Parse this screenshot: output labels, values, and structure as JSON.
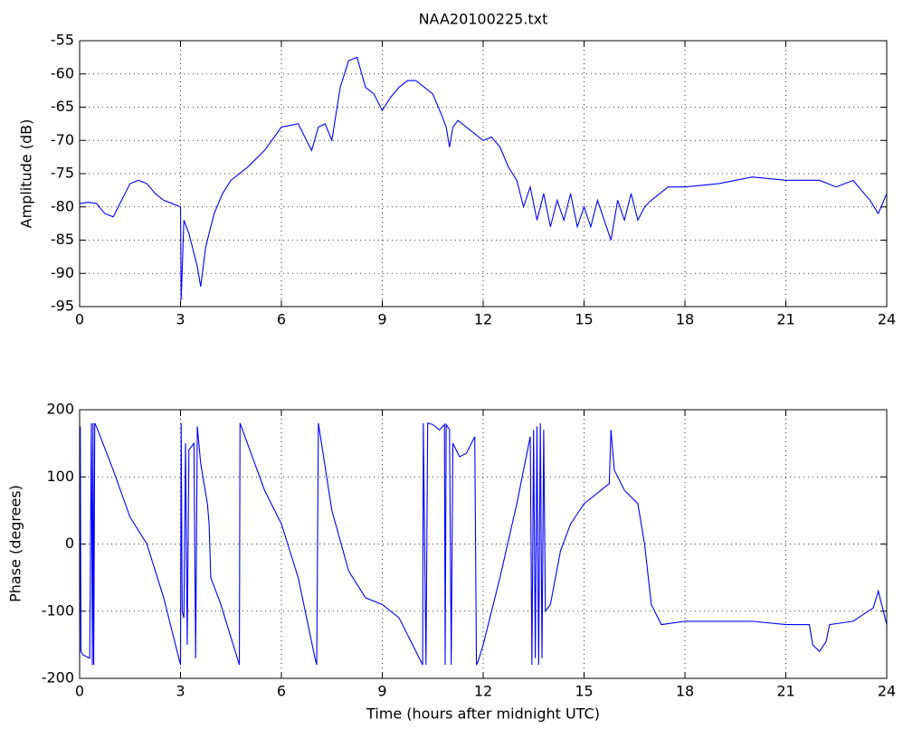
{
  "chart_data": [
    {
      "type": "line",
      "title": "NAA20100225.txt",
      "y_label": "Amplitude (dB)",
      "grid": true,
      "xlim": [
        0,
        24
      ],
      "xticks": [
        0,
        3,
        6,
        9,
        12,
        15,
        18,
        21,
        24
      ],
      "ylim": [
        -95,
        -55
      ],
      "yticks": [
        -55,
        -60,
        -65,
        -70,
        -75,
        -80,
        -85,
        -90,
        -95
      ],
      "series": [
        {
          "name": "Amplitude",
          "color": "#0000ff",
          "x": [
            0,
            0.25,
            0.5,
            0.75,
            1.0,
            1.25,
            1.5,
            1.75,
            2.0,
            2.25,
            2.5,
            2.75,
            3.0,
            3.02,
            3.1,
            3.25,
            3.5,
            3.6,
            3.75,
            4.0,
            4.25,
            4.5,
            5.0,
            5.5,
            6.0,
            6.5,
            6.75,
            6.9,
            7.1,
            7.3,
            7.5,
            7.75,
            8.0,
            8.25,
            8.5,
            8.75,
            9.0,
            9.25,
            9.5,
            9.75,
            10.0,
            10.25,
            10.5,
            10.75,
            10.9,
            11.0,
            11.1,
            11.25,
            11.5,
            11.75,
            12.0,
            12.25,
            12.5,
            12.75,
            13.0,
            13.2,
            13.4,
            13.6,
            13.8,
            14.0,
            14.2,
            14.4,
            14.6,
            14.8,
            15.0,
            15.2,
            15.4,
            15.6,
            15.8,
            16.0,
            16.2,
            16.4,
            16.6,
            16.8,
            17.0,
            17.5,
            18.0,
            19.0,
            20.0,
            21.0,
            22.0,
            22.5,
            23.0,
            23.5,
            23.75,
            24.0
          ],
          "values": [
            -79.5,
            -79.3,
            -79.5,
            -81,
            -81.5,
            -79,
            -76.5,
            -76,
            -76.5,
            -78,
            -79,
            -79.5,
            -80,
            -94,
            -82,
            -84,
            -89,
            -92,
            -86,
            -81,
            -78,
            -76,
            -74,
            -71.5,
            -68,
            -67.5,
            -70,
            -71.5,
            -68,
            -67.5,
            -70,
            -62,
            -58,
            -57.5,
            -62,
            -63,
            -65.5,
            -63.5,
            -62,
            -61,
            -61,
            -62,
            -63,
            -66,
            -68,
            -71,
            -68,
            -67,
            -68,
            -69,
            -70,
            -69.5,
            -71,
            -74,
            -76,
            -80,
            -77,
            -82,
            -78,
            -83,
            -79,
            -82,
            -78,
            -83,
            -80,
            -83,
            -79,
            -82,
            -85,
            -79,
            -82,
            -78,
            -82,
            -80,
            -79,
            -77,
            -77,
            -76.5,
            -75.5,
            -76,
            -76,
            -77,
            -76,
            -79,
            -81,
            -78
          ]
        }
      ]
    },
    {
      "type": "line",
      "x_label": "Time (hours after midnight UTC)",
      "y_label": "Phase (degrees)",
      "grid": true,
      "xlim": [
        0,
        24
      ],
      "xticks": [
        0,
        3,
        6,
        9,
        12,
        15,
        18,
        21,
        24
      ],
      "ylim": [
        -200,
        200
      ],
      "yticks": [
        200,
        100,
        0,
        -100,
        -200
      ],
      "series": [
        {
          "name": "Phase",
          "color": "#0000ff",
          "x": [
            0,
            0.02,
            0.04,
            0.1,
            0.3,
            0.35,
            0.38,
            0.4,
            0.42,
            0.45,
            0.5,
            1,
            1.5,
            2,
            2.5,
            3.0,
            3.02,
            3.05,
            3.1,
            3.15,
            3.2,
            3.25,
            3.4,
            3.45,
            3.5,
            3.6,
            3.8,
            3.85,
            3.9,
            4.2,
            4.75,
            4.77,
            5.5,
            6,
            6.5,
            7.0,
            7.05,
            7.1,
            7.5,
            8,
            8.5,
            9,
            9.5,
            10,
            10.2,
            10.22,
            10.3,
            10.35,
            10.5,
            10.7,
            10.85,
            10.87,
            10.9,
            11.0,
            11.05,
            11.1,
            11.3,
            11.5,
            11.75,
            11.8,
            11.85,
            12,
            12.5,
            13,
            13.4,
            13.45,
            13.5,
            13.55,
            13.6,
            13.65,
            13.7,
            13.75,
            13.8,
            13.85,
            14,
            14.3,
            14.6,
            15,
            15.5,
            15.75,
            15.8,
            15.9,
            16.2,
            16.6,
            16.8,
            17,
            17.3,
            18,
            19,
            20,
            21,
            21.7,
            21.8,
            22,
            22.2,
            22.3,
            23,
            23.6,
            23.75,
            24
          ],
          "values": [
            -160,
            175,
            -160,
            -165,
            -170,
            180,
            -180,
            180,
            -180,
            180,
            175,
            110,
            40,
            0,
            -80,
            -180,
            180,
            -100,
            -110,
            150,
            -150,
            140,
            150,
            -170,
            175,
            120,
            60,
            30,
            -50,
            -90,
            -180,
            180,
            80,
            30,
            -50,
            -170,
            -180,
            180,
            50,
            -40,
            -80,
            -90,
            -110,
            -160,
            -180,
            180,
            -180,
            180,
            178,
            170,
            178,
            -180,
            178,
            170,
            -180,
            150,
            130,
            135,
            160,
            -180,
            -175,
            -150,
            -50,
            60,
            160,
            -180,
            170,
            -170,
            175,
            -180,
            180,
            -170,
            170,
            -100,
            -90,
            -10,
            30,
            60,
            80,
            90,
            170,
            110,
            80,
            60,
            0,
            -90,
            -120,
            -115,
            -115,
            -115,
            -120,
            -120,
            -150,
            -160,
            -145,
            -120,
            -115,
            -95,
            -70,
            -120
          ]
        }
      ]
    }
  ]
}
